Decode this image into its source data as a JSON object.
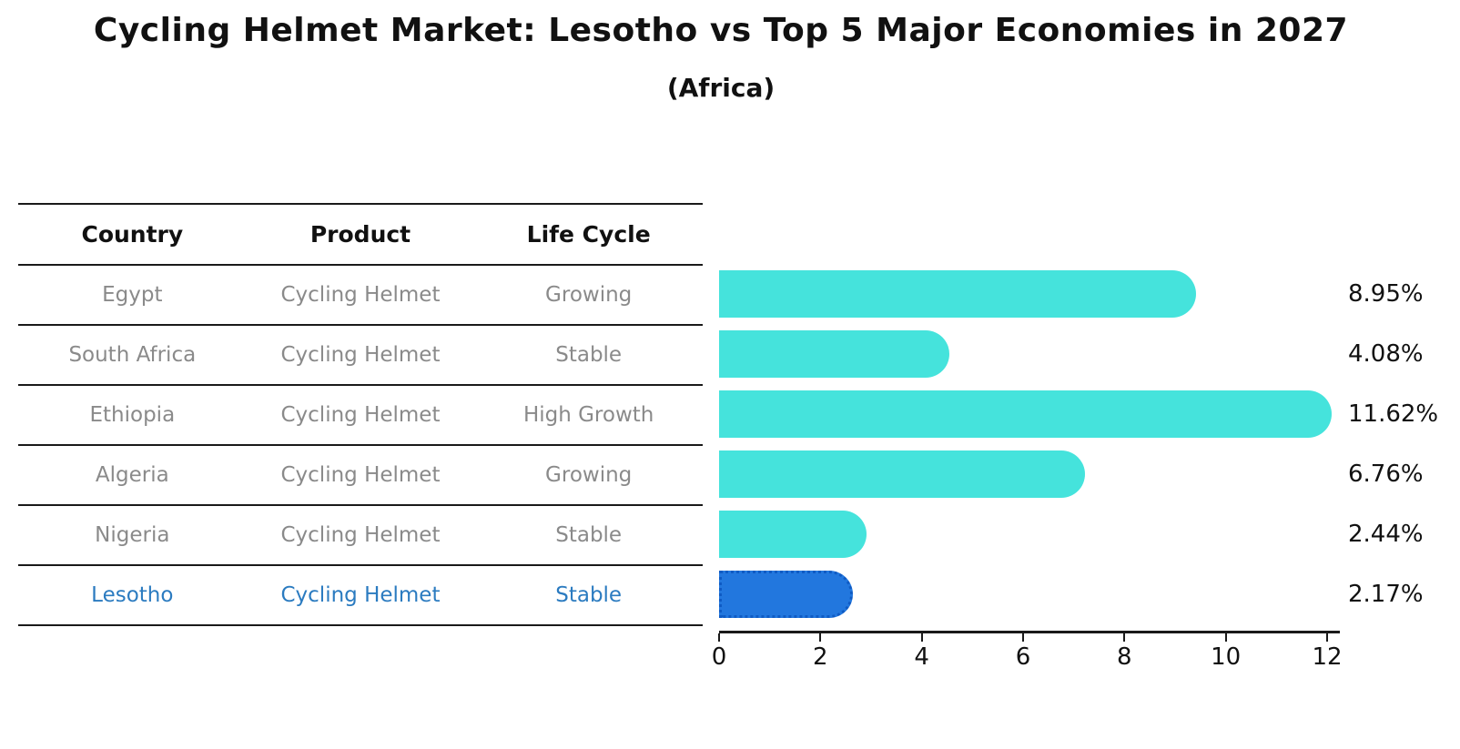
{
  "title": "Cycling Helmet Market: Lesotho vs Top 5 Major Economies in 2027",
  "subtitle": "(Africa)",
  "table": {
    "columns": [
      "Country",
      "Product",
      "Life Cycle"
    ],
    "rows": [
      {
        "country": "Egypt",
        "product": "Cycling Helmet",
        "life_cycle": "Growing",
        "highlight": false
      },
      {
        "country": "South Africa",
        "product": "Cycling Helmet",
        "life_cycle": "Stable",
        "highlight": false
      },
      {
        "country": "Ethiopia",
        "product": "Cycling Helmet",
        "life_cycle": "High Growth",
        "highlight": false
      },
      {
        "country": "Algeria",
        "product": "Cycling Helmet",
        "life_cycle": "Growing",
        "highlight": false
      },
      {
        "country": "Nigeria",
        "product": "Cycling Helmet",
        "life_cycle": "Stable",
        "highlight": false
      },
      {
        "country": "Lesotho",
        "product": "Cycling Helmet",
        "life_cycle": "Stable",
        "highlight": true
      }
    ]
  },
  "chart_data": {
    "type": "bar",
    "orientation": "horizontal",
    "title": "Cycling Helmet Market: Lesotho vs Top 5 Major Economies in 2027",
    "subtitle": "(Africa)",
    "categories": [
      "Egypt",
      "South Africa",
      "Ethiopia",
      "Algeria",
      "Nigeria",
      "Lesotho"
    ],
    "values": [
      8.95,
      4.08,
      11.62,
      6.76,
      2.44,
      2.17
    ],
    "value_labels": [
      "8.95%",
      "4.08%",
      "11.62%",
      "6.76%",
      "2.44%",
      "2.17%"
    ],
    "xlabel": "",
    "ylabel": "",
    "xlim": [
      0,
      12
    ],
    "x_ticks": [
      0,
      2,
      4,
      6,
      8,
      10,
      12
    ],
    "grid": false,
    "legend": false,
    "highlight_index": 5
  },
  "colors": {
    "bar": "#45e3dc",
    "highlight_bar": "#2277de",
    "highlight_bar_border": "#0f5bc4",
    "highlight_text": "#2b7bc0",
    "table_text": "#8a8a8a",
    "header_text": "#111111",
    "axis": "#1a1a1a"
  }
}
